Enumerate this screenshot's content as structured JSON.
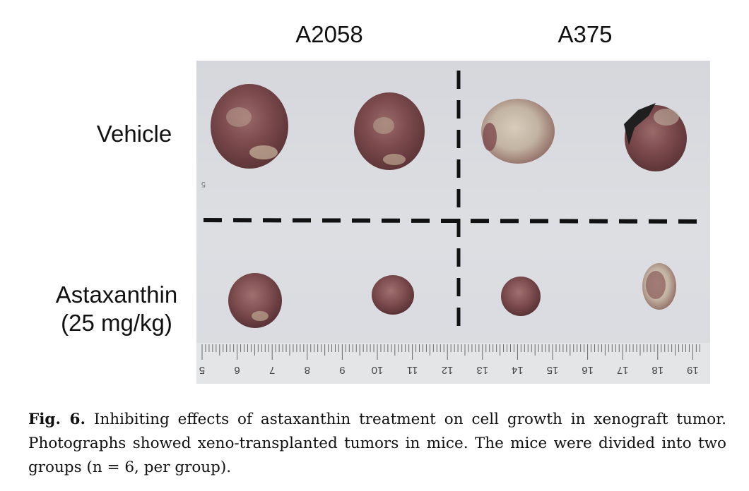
{
  "figure": {
    "columns": [
      "A2058",
      "A375"
    ],
    "rows": [
      {
        "lines": [
          "Vehicle"
        ]
      },
      {
        "lines": [
          "Astaxanthin",
          "(25 mg/kg)"
        ]
      }
    ],
    "ruler_ticks": [
      "5",
      "6",
      "7",
      "8",
      "9",
      "10",
      "11",
      "12",
      "13",
      "14",
      "15",
      "16",
      "17",
      "18",
      "19"
    ],
    "stray_mark": "5"
  },
  "caption": {
    "label": "Fig. 6.",
    "text": "Inhibiting effects of astaxanthin treatment on cell growth in xenograft tumor. Photographs showed xeno-transplanted tumors in mice. The mice were divided into two groups (n = 6, per group)."
  }
}
